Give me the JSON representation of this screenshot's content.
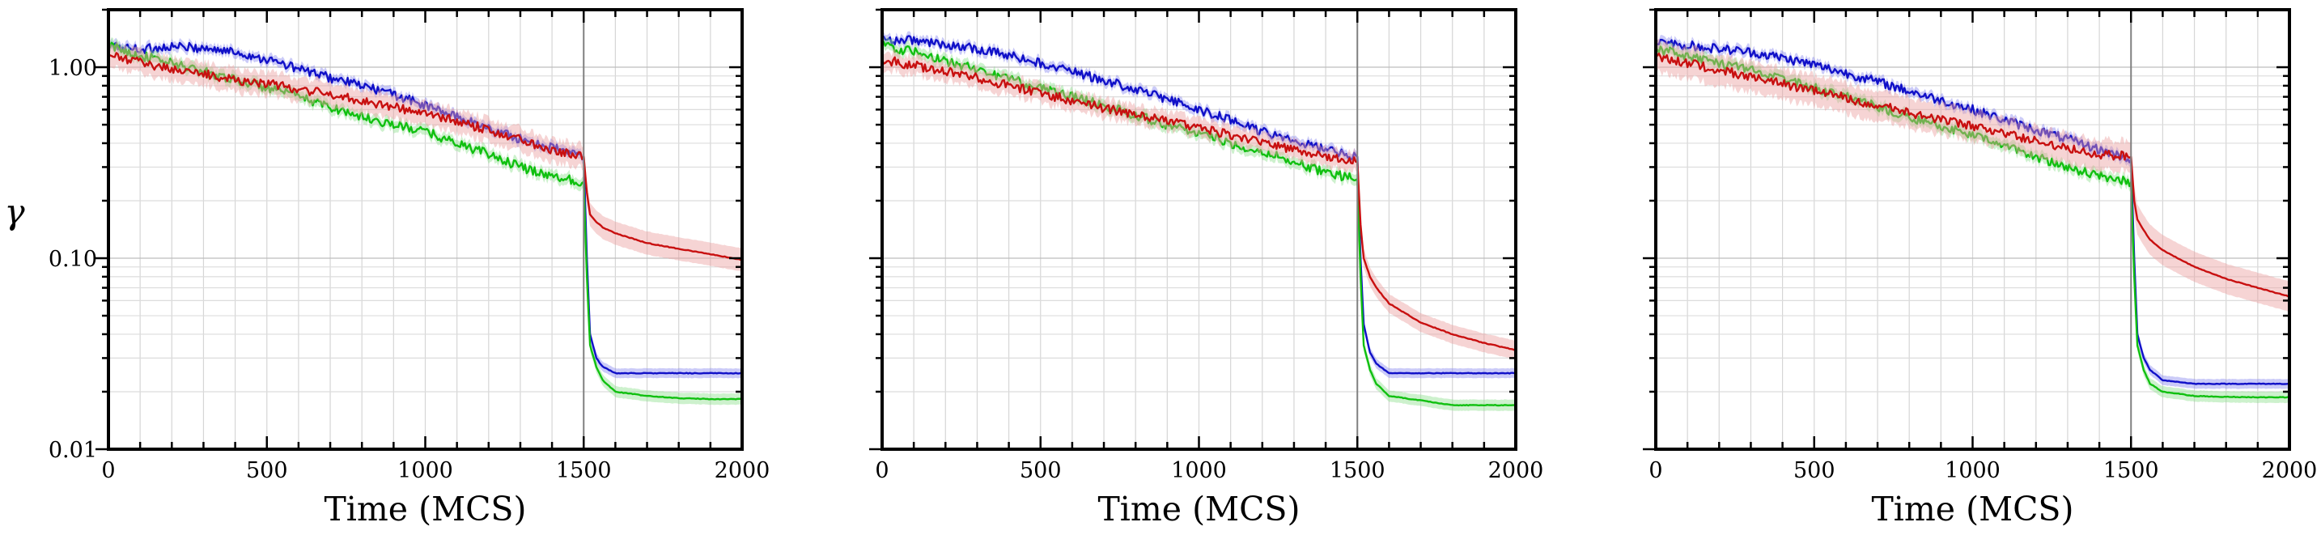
{
  "chart_data": [
    {
      "type": "line",
      "xlabel": "Time (MCS)",
      "ylabel": "γ",
      "xlim": [
        0,
        2000
      ],
      "ylim": [
        0.01,
        2.0
      ],
      "yscale": "log",
      "grid": true,
      "vline_x": 1500,
      "x_ticks": [
        "0",
        "500",
        "1000",
        "1500",
        "2000"
      ],
      "y_ticks": [
        "0.01",
        "0.10",
        "1.00"
      ],
      "series": [
        {
          "color": "#1010c8",
          "band_color": "#8c8cf0",
          "x": [
            0,
            100,
            200,
            300,
            400,
            500,
            600,
            700,
            800,
            900,
            1000,
            1100,
            1200,
            1300,
            1400,
            1500,
            1510,
            1520,
            1540,
            1560,
            1600,
            1700,
            1800,
            1900,
            2000
          ],
          "y": [
            1.3,
            1.24,
            1.28,
            1.26,
            1.2,
            1.1,
            0.98,
            0.88,
            0.8,
            0.72,
            0.63,
            0.55,
            0.48,
            0.42,
            0.38,
            0.34,
            0.1,
            0.04,
            0.03,
            0.027,
            0.025,
            0.025,
            0.025,
            0.025,
            0.025
          ],
          "band": 0.06
        },
        {
          "color": "#10c010",
          "band_color": "#90e090",
          "x": [
            0,
            100,
            200,
            300,
            400,
            500,
            600,
            700,
            800,
            900,
            1000,
            1100,
            1200,
            1300,
            1400,
            1500,
            1510,
            1520,
            1540,
            1560,
            1600,
            1700,
            1800,
            1900,
            2000
          ],
          "y": [
            1.3,
            1.15,
            1.05,
            0.95,
            0.86,
            0.78,
            0.7,
            0.62,
            0.55,
            0.5,
            0.46,
            0.4,
            0.35,
            0.3,
            0.27,
            0.25,
            0.08,
            0.035,
            0.027,
            0.023,
            0.02,
            0.019,
            0.0185,
            0.0183,
            0.0183
          ],
          "band": 0.07
        },
        {
          "color": "#c81010",
          "band_color": "#eaa0a0",
          "x": [
            0,
            100,
            200,
            300,
            400,
            500,
            600,
            700,
            800,
            900,
            1000,
            1100,
            1200,
            1300,
            1400,
            1500,
            1510,
            1520,
            1540,
            1560,
            1600,
            1700,
            1800,
            1900,
            2000
          ],
          "y": [
            1.15,
            1.06,
            0.98,
            0.92,
            0.86,
            0.82,
            0.77,
            0.72,
            0.67,
            0.62,
            0.57,
            0.52,
            0.47,
            0.42,
            0.37,
            0.34,
            0.22,
            0.17,
            0.155,
            0.145,
            0.135,
            0.12,
            0.112,
            0.105,
            0.098
          ],
          "band": 0.15
        }
      ]
    },
    {
      "type": "line",
      "xlabel": "Time (MCS)",
      "ylabel": "",
      "xlim": [
        0,
        2000
      ],
      "ylim": [
        0.01,
        2.0
      ],
      "yscale": "log",
      "grid": true,
      "vline_x": 1500,
      "x_ticks": [
        "0",
        "500",
        "1000",
        "1500",
        "2000"
      ],
      "y_ticks": [],
      "series": [
        {
          "color": "#1010c8",
          "band_color": "#8c8cf0",
          "x": [
            0,
            100,
            200,
            300,
            400,
            500,
            600,
            700,
            800,
            900,
            1000,
            1100,
            1200,
            1300,
            1400,
            1500,
            1510,
            1520,
            1540,
            1560,
            1600,
            1700,
            1800,
            1900,
            2000
          ],
          "y": [
            1.4,
            1.38,
            1.32,
            1.25,
            1.15,
            1.05,
            0.95,
            0.85,
            0.77,
            0.68,
            0.6,
            0.53,
            0.46,
            0.41,
            0.37,
            0.34,
            0.1,
            0.045,
            0.032,
            0.028,
            0.025,
            0.025,
            0.025,
            0.025,
            0.025
          ],
          "band": 0.06
        },
        {
          "color": "#10c010",
          "band_color": "#90e090",
          "x": [
            0,
            100,
            200,
            300,
            400,
            500,
            600,
            700,
            800,
            900,
            1000,
            1100,
            1200,
            1300,
            1400,
            1500,
            1510,
            1520,
            1540,
            1560,
            1600,
            1700,
            1800,
            1900,
            2000
          ],
          "y": [
            1.3,
            1.2,
            1.08,
            0.97,
            0.87,
            0.78,
            0.7,
            0.63,
            0.56,
            0.5,
            0.45,
            0.4,
            0.36,
            0.32,
            0.28,
            0.26,
            0.08,
            0.035,
            0.026,
            0.022,
            0.019,
            0.018,
            0.017,
            0.017,
            0.017
          ],
          "band": 0.07
        },
        {
          "color": "#c81010",
          "band_color": "#eaa0a0",
          "x": [
            0,
            100,
            200,
            300,
            400,
            500,
            600,
            700,
            800,
            900,
            1000,
            1100,
            1200,
            1300,
            1400,
            1500,
            1510,
            1520,
            1540,
            1560,
            1600,
            1700,
            1800,
            1900,
            2000
          ],
          "y": [
            1.1,
            1.02,
            0.95,
            0.88,
            0.8,
            0.73,
            0.67,
            0.61,
            0.56,
            0.52,
            0.48,
            0.44,
            0.4,
            0.37,
            0.34,
            0.32,
            0.15,
            0.1,
            0.08,
            0.07,
            0.058,
            0.046,
            0.04,
            0.036,
            0.033
          ],
          "band": 0.12
        }
      ]
    },
    {
      "type": "line",
      "xlabel": "Time (MCS)",
      "ylabel": "",
      "xlim": [
        0,
        2000
      ],
      "ylim": [
        0.01,
        2.0
      ],
      "yscale": "log",
      "grid": true,
      "vline_x": 1500,
      "x_ticks": [
        "0",
        "500",
        "1000",
        "1500",
        "2000"
      ],
      "y_ticks": [],
      "series": [
        {
          "color": "#1010c8",
          "band_color": "#8c8cf0",
          "x": [
            0,
            100,
            200,
            300,
            400,
            500,
            600,
            700,
            800,
            900,
            1000,
            1100,
            1200,
            1300,
            1400,
            1500,
            1510,
            1520,
            1540,
            1560,
            1600,
            1700,
            1800,
            1900,
            2000
          ],
          "y": [
            1.35,
            1.3,
            1.25,
            1.2,
            1.12,
            1.03,
            0.93,
            0.84,
            0.75,
            0.67,
            0.6,
            0.53,
            0.47,
            0.42,
            0.37,
            0.33,
            0.1,
            0.04,
            0.03,
            0.026,
            0.023,
            0.022,
            0.022,
            0.022,
            0.022
          ],
          "band": 0.06
        },
        {
          "color": "#10c010",
          "band_color": "#90e090",
          "x": [
            0,
            100,
            200,
            300,
            400,
            500,
            600,
            700,
            800,
            900,
            1000,
            1100,
            1200,
            1300,
            1400,
            1500,
            1510,
            1520,
            1540,
            1560,
            1600,
            1700,
            1800,
            1900,
            2000
          ],
          "y": [
            1.25,
            1.15,
            1.05,
            0.96,
            0.87,
            0.78,
            0.7,
            0.62,
            0.55,
            0.49,
            0.44,
            0.39,
            0.34,
            0.3,
            0.27,
            0.25,
            0.08,
            0.035,
            0.026,
            0.022,
            0.02,
            0.019,
            0.0188,
            0.0187,
            0.0187
          ],
          "band": 0.07
        },
        {
          "color": "#c81010",
          "band_color": "#eaa0a0",
          "x": [
            0,
            100,
            200,
            300,
            400,
            500,
            600,
            700,
            800,
            900,
            1000,
            1100,
            1200,
            1300,
            1400,
            1500,
            1510,
            1520,
            1540,
            1560,
            1600,
            1700,
            1800,
            1900,
            2000
          ],
          "y": [
            1.15,
            1.05,
            0.97,
            0.89,
            0.82,
            0.75,
            0.69,
            0.63,
            0.58,
            0.53,
            0.49,
            0.45,
            0.41,
            0.38,
            0.35,
            0.34,
            0.2,
            0.16,
            0.14,
            0.125,
            0.11,
            0.09,
            0.078,
            0.07,
            0.063
          ],
          "band": 0.2
        }
      ]
    }
  ]
}
